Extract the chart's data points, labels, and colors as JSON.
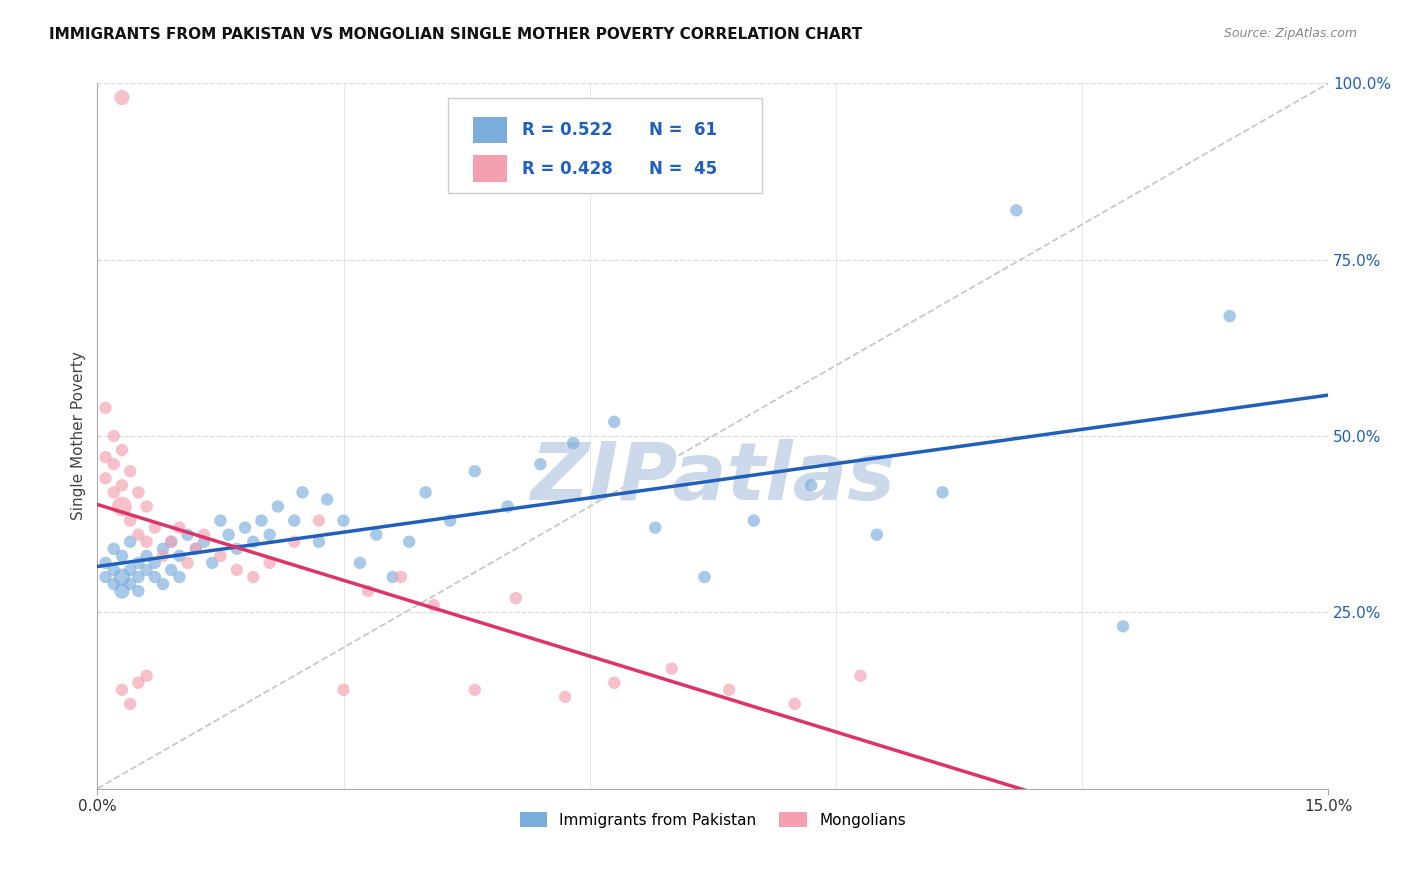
{
  "title": "IMMIGRANTS FROM PAKISTAN VS MONGOLIAN SINGLE MOTHER POVERTY CORRELATION CHART",
  "source": "Source: ZipAtlas.com",
  "ylabel": "Single Mother Poverty",
  "xlim": [
    0,
    0.15
  ],
  "ylim": [
    0,
    1.0
  ],
  "legend_blue_r": "R = 0.522",
  "legend_blue_n": "N =  61",
  "legend_pink_r": "R = 0.428",
  "legend_pink_n": "N =  45",
  "blue_color": "#7aaddb",
  "pink_color": "#f4a0b0",
  "trend_blue": "#2060bb",
  "trend_pink": "#dd3366",
  "diagonal_color": "#bbbbbb",
  "watermark_color": "#ccd9eb",
  "background_color": "#ffffff",
  "grid_color": "#dddddd",
  "blue_scatter_x": [
    0.001,
    0.001,
    0.002,
    0.002,
    0.002,
    0.003,
    0.003,
    0.003,
    0.004,
    0.004,
    0.004,
    0.005,
    0.005,
    0.005,
    0.006,
    0.006,
    0.007,
    0.007,
    0.008,
    0.008,
    0.009,
    0.009,
    0.01,
    0.01,
    0.011,
    0.012,
    0.013,
    0.014,
    0.015,
    0.016,
    0.017,
    0.018,
    0.019,
    0.02,
    0.021,
    0.022,
    0.024,
    0.025,
    0.027,
    0.028,
    0.03,
    0.032,
    0.034,
    0.036,
    0.038,
    0.04,
    0.043,
    0.046,
    0.05,
    0.054,
    0.058,
    0.063,
    0.068,
    0.074,
    0.08,
    0.087,
    0.095,
    0.103,
    0.112,
    0.125,
    0.138
  ],
  "blue_scatter_y": [
    0.32,
    0.3,
    0.34,
    0.29,
    0.31,
    0.3,
    0.28,
    0.33,
    0.31,
    0.29,
    0.35,
    0.3,
    0.32,
    0.28,
    0.31,
    0.33,
    0.3,
    0.32,
    0.29,
    0.34,
    0.31,
    0.35,
    0.33,
    0.3,
    0.36,
    0.34,
    0.35,
    0.32,
    0.38,
    0.36,
    0.34,
    0.37,
    0.35,
    0.38,
    0.36,
    0.4,
    0.38,
    0.42,
    0.35,
    0.41,
    0.38,
    0.32,
    0.36,
    0.3,
    0.35,
    0.42,
    0.38,
    0.45,
    0.4,
    0.46,
    0.49,
    0.52,
    0.37,
    0.3,
    0.38,
    0.43,
    0.36,
    0.42,
    0.82,
    0.23,
    0.67
  ],
  "blue_scatter_s": [
    80,
    80,
    80,
    80,
    80,
    150,
    120,
    80,
    80,
    80,
    80,
    80,
    80,
    80,
    80,
    80,
    80,
    80,
    80,
    80,
    80,
    80,
    80,
    80,
    80,
    80,
    80,
    80,
    80,
    80,
    80,
    80,
    80,
    80,
    80,
    80,
    80,
    80,
    80,
    80,
    80,
    80,
    80,
    80,
    80,
    80,
    80,
    80,
    80,
    80,
    80,
    80,
    80,
    80,
    80,
    80,
    80,
    80,
    80,
    80,
    80
  ],
  "pink_scatter_x": [
    0.001,
    0.001,
    0.001,
    0.002,
    0.002,
    0.002,
    0.003,
    0.003,
    0.003,
    0.004,
    0.004,
    0.005,
    0.005,
    0.006,
    0.006,
    0.007,
    0.008,
    0.009,
    0.01,
    0.011,
    0.012,
    0.013,
    0.015,
    0.017,
    0.019,
    0.021,
    0.024,
    0.027,
    0.03,
    0.033,
    0.037,
    0.041,
    0.046,
    0.051,
    0.057,
    0.063,
    0.07,
    0.077,
    0.085,
    0.093,
    0.003,
    0.004,
    0.005,
    0.006,
    0.003
  ],
  "pink_scatter_y": [
    0.47,
    0.54,
    0.44,
    0.5,
    0.46,
    0.42,
    0.48,
    0.43,
    0.4,
    0.45,
    0.38,
    0.42,
    0.36,
    0.4,
    0.35,
    0.37,
    0.33,
    0.35,
    0.37,
    0.32,
    0.34,
    0.36,
    0.33,
    0.31,
    0.3,
    0.32,
    0.35,
    0.38,
    0.14,
    0.28,
    0.3,
    0.26,
    0.14,
    0.27,
    0.13,
    0.15,
    0.17,
    0.14,
    0.12,
    0.16,
    0.14,
    0.12,
    0.15,
    0.16,
    0.98
  ],
  "pink_scatter_s": [
    80,
    80,
    80,
    80,
    80,
    80,
    80,
    80,
    200,
    80,
    80,
    80,
    80,
    80,
    80,
    80,
    80,
    80,
    80,
    80,
    80,
    80,
    80,
    80,
    80,
    80,
    80,
    80,
    80,
    80,
    80,
    80,
    80,
    80,
    80,
    80,
    80,
    80,
    80,
    80,
    80,
    80,
    80,
    80,
    120
  ]
}
